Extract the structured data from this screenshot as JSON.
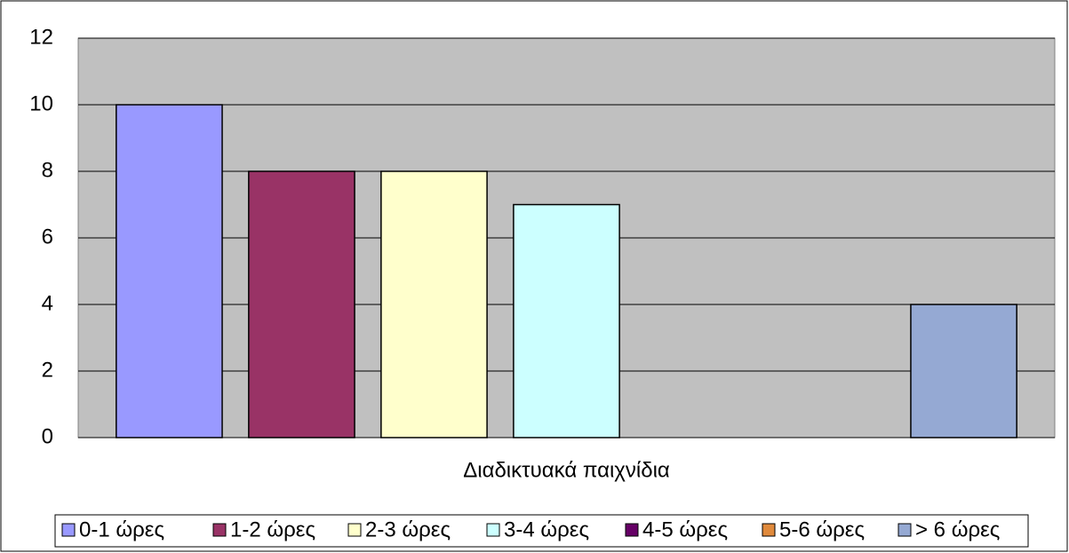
{
  "chart_data": {
    "type": "bar",
    "categories": [
      "Διαδικτυακά παιχνίδια"
    ],
    "series": [
      {
        "name": "0-1 ώρες",
        "color": "#9999ff",
        "values": [
          10
        ]
      },
      {
        "name": "1-2 ώρες",
        "color": "#993366",
        "values": [
          8
        ]
      },
      {
        "name": "2-3 ώρες",
        "color": "#ffffcc",
        "values": [
          8
        ]
      },
      {
        "name": "3-4 ώρες",
        "color": "#ccffff",
        "values": [
          7
        ]
      },
      {
        "name": "4-5 ώρες",
        "color": "#660066",
        "values": [
          0
        ]
      },
      {
        "name": "5-6 ώρες",
        "color": "#e08a3c",
        "values": [
          0
        ]
      },
      {
        "name": "> 6 ώρες",
        "color": "#95a9d3",
        "values": [
          4
        ]
      }
    ],
    "ylim": [
      0,
      12
    ],
    "yticks": [
      0,
      2,
      4,
      6,
      8,
      10,
      12
    ],
    "grid": true,
    "legend": "bottom"
  }
}
